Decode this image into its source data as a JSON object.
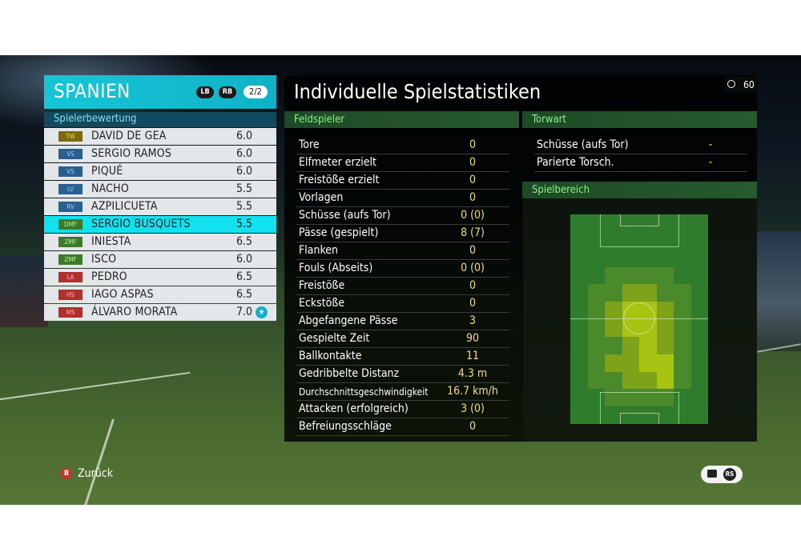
{
  "team": {
    "name": "SPANIEN",
    "lb": "LB",
    "rb": "RB",
    "page": "2/2"
  },
  "rating_header": "Spielerbewertung",
  "players": [
    {
      "pos": "TW",
      "name": "DAVID DE GEA",
      "rating": "6.0",
      "group": "gk"
    },
    {
      "pos": "VS",
      "name": "SERGIO RAMOS",
      "rating": "6.0",
      "group": "def"
    },
    {
      "pos": "VS",
      "name": "PIQUÉ",
      "rating": "6.0",
      "group": "def"
    },
    {
      "pos": "LV",
      "name": "NACHO",
      "rating": "5.5",
      "group": "def"
    },
    {
      "pos": "RV",
      "name": "AZPILICUETA",
      "rating": "5.5",
      "group": "def"
    },
    {
      "pos": "DMF",
      "name": "SERGIO BUSQUETS",
      "rating": "5.5",
      "group": "mid",
      "selected": true
    },
    {
      "pos": "ZMF",
      "name": "INIESTA",
      "rating": "6.5",
      "group": "mid"
    },
    {
      "pos": "ZMF",
      "name": "ISCO",
      "rating": "6.0",
      "group": "mid"
    },
    {
      "pos": "LA",
      "name": "PEDRO",
      "rating": "6.5",
      "group": "att"
    },
    {
      "pos": "HS",
      "name": "IAGO ASPAS",
      "rating": "6.5",
      "group": "att"
    },
    {
      "pos": "MS",
      "name": "ÁLVARO MORATA",
      "rating": "7.0",
      "group": "att",
      "star": true
    }
  ],
  "stats_title": "Individuelle Spielstatistiken",
  "timer": "60",
  "field_header": "Feldspieler",
  "field_stats": [
    {
      "label": "Tore",
      "value": "0"
    },
    {
      "label": "Elfmeter erzielt",
      "value": "0"
    },
    {
      "label": "Freistöße erzielt",
      "value": "0"
    },
    {
      "label": "Vorlagen",
      "value": "0"
    },
    {
      "label": "Schüsse (aufs Tor)",
      "value": "0 (0)"
    },
    {
      "label": "Pässe (gespielt)",
      "value": "8 (7)"
    },
    {
      "label": "Flanken",
      "value": "0"
    },
    {
      "label": "Fouls (Abseits)",
      "value": "0 (0)"
    },
    {
      "label": "Freistöße",
      "value": "0"
    },
    {
      "label": "Eckstöße",
      "value": "0"
    },
    {
      "label": "Abgefangene Pässe",
      "value": "3"
    },
    {
      "label": "Gespielte Zeit",
      "value": "90"
    },
    {
      "label": "Ballkontakte",
      "value": "11"
    },
    {
      "label": "Gedribbelte Distanz",
      "value": "4.3 m"
    },
    {
      "label": "Durchschnittsgeschwindigkeit",
      "value": "16.7 km/h",
      "small": true
    },
    {
      "label": "Attacken (erfolgreich)",
      "value": "3 (0)"
    },
    {
      "label": "Befreiungsschläge",
      "value": "0"
    }
  ],
  "gk_header": "Torwart",
  "gk_stats": [
    {
      "label": "Schüsse (aufs Tor)",
      "value": "-"
    },
    {
      "label": "Parierte Torsch.",
      "value": "-"
    }
  ],
  "area_header": "Spielbereich",
  "back_label": "Zurück",
  "back_key": "B",
  "rs_key": "RS",
  "colors": {
    "accent": "#16c6d6",
    "stat_value": "#f2e070",
    "section_text": "#8cf08a"
  }
}
